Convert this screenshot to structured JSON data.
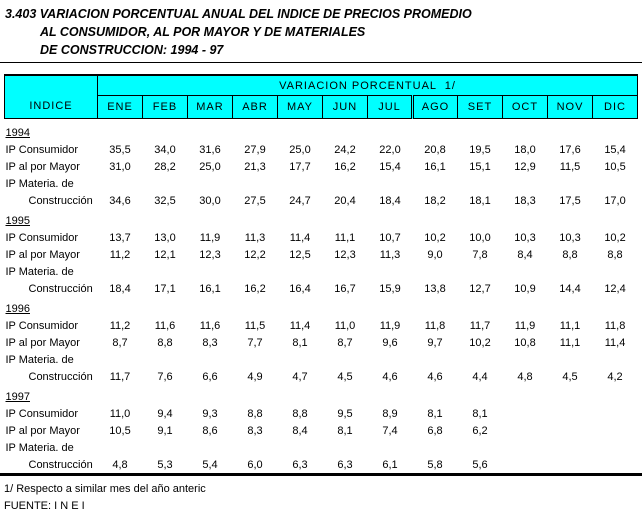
{
  "title": {
    "line1": "3.403 VARIACION PORCENTUAL ANUAL DEL INDICE DE PRECIOS PROMEDIO",
    "line2": "AL CONSUMIDOR, AL POR MAYOR Y DE  MATERIALES",
    "line3": "DE CONSTRUCCION: 1994 - 97"
  },
  "colors": {
    "header_bg": "#00FFFF",
    "border": "#000000"
  },
  "table": {
    "index_header": "INDICE",
    "group_header": "VARIACION PORCENTUAL  1/",
    "months": [
      "ENE",
      "FEB",
      "MAR",
      "ABR",
      "MAY",
      "JUN",
      "JUL",
      "AGO",
      "SET",
      "OCT",
      "NOV",
      "DIC"
    ],
    "sections": [
      {
        "year": "1994",
        "rows": [
          {
            "label": "IP Consumidor",
            "indent": false,
            "values": [
              "35,5",
              "34,0",
              "31,6",
              "27,9",
              "25,0",
              "24,2",
              "22,0",
              "20,8",
              "19,5",
              "18,0",
              "17,6",
              "15,4"
            ]
          },
          {
            "label": "IP al por Mayor",
            "indent": false,
            "values": [
              "31,0",
              "28,2",
              "25,0",
              "21,3",
              "17,7",
              "16,2",
              "15,4",
              "16,1",
              "15,1",
              "12,9",
              "11,5",
              "10,5"
            ]
          },
          {
            "label": "IP Materia. de",
            "indent": false,
            "values": []
          },
          {
            "label": "Construcción",
            "indent": true,
            "values": [
              "34,6",
              "32,5",
              "30,0",
              "27,5",
              "24,7",
              "20,4",
              "18,4",
              "18,2",
              "18,1",
              "18,3",
              "17,5",
              "17,0"
            ]
          }
        ]
      },
      {
        "year": "1995",
        "rows": [
          {
            "label": "IP Consumidor",
            "indent": false,
            "values": [
              "13,7",
              "13,0",
              "11,9",
              "11,3",
              "11,4",
              "11,1",
              "10,7",
              "10,2",
              "10,0",
              "10,3",
              "10,3",
              "10,2"
            ]
          },
          {
            "label": "IP al por Mayor",
            "indent": false,
            "values": [
              "11,2",
              "12,1",
              "12,3",
              "12,2",
              "12,5",
              "12,3",
              "11,3",
              "9,0",
              "7,8",
              "8,4",
              "8,8",
              "8,8"
            ]
          },
          {
            "label": "IP Materia. de",
            "indent": false,
            "values": []
          },
          {
            "label": "Construcción",
            "indent": true,
            "values": [
              "18,4",
              "17,1",
              "16,1",
              "16,2",
              "16,4",
              "16,7",
              "15,9",
              "13,8",
              "12,7",
              "10,9",
              "14,4",
              "12,4"
            ]
          }
        ]
      },
      {
        "year": "1996",
        "rows": [
          {
            "label": "IP Consumidor",
            "indent": false,
            "values": [
              "11,2",
              "11,6",
              "11,6",
              "11,5",
              "11,4",
              "11,0",
              "11,9",
              "11,8",
              "11,7",
              "11,9",
              "11,1",
              "11,8"
            ]
          },
          {
            "label": "IP al por Mayor",
            "indent": false,
            "values": [
              "8,7",
              "8,8",
              "8,3",
              "7,7",
              "8,1",
              "8,7",
              "9,6",
              "9,7",
              "10,2",
              "10,8",
              "11,1",
              "11,4"
            ]
          },
          {
            "label": "IP Materia. de",
            "indent": false,
            "values": []
          },
          {
            "label": "Construcción",
            "indent": true,
            "values": [
              "11,7",
              "7,6",
              "6,6",
              "4,9",
              "4,7",
              "4,5",
              "4,6",
              "4,6",
              "4,4",
              "4,8",
              "4,5",
              "4,2"
            ]
          }
        ]
      },
      {
        "year": "1997",
        "rows": [
          {
            "label": "IP Consumidor",
            "indent": false,
            "values": [
              "11,0",
              "9,4",
              "9,3",
              "8,8",
              "8,8",
              "9,5",
              "8,9",
              "8,1",
              "8,1",
              "",
              "",
              ""
            ]
          },
          {
            "label": "IP al por Mayor",
            "indent": false,
            "values": [
              "10,5",
              "9,1",
              "8,6",
              "8,3",
              "8,4",
              "8,1",
              "7,4",
              "6,8",
              "6,2",
              "",
              "",
              ""
            ]
          },
          {
            "label": "IP Materia. de",
            "indent": false,
            "values": []
          },
          {
            "label": "Construcción",
            "indent": true,
            "values": [
              "4,8",
              "5,3",
              "5,4",
              "6,0",
              "6,3",
              "6,3",
              "6,1",
              "5,8",
              "5,6",
              "",
              "",
              ""
            ]
          }
        ]
      }
    ]
  },
  "footer": {
    "note": "1/ Respecto a similar mes del año anteric",
    "source": "FUENTE: I N E I"
  }
}
